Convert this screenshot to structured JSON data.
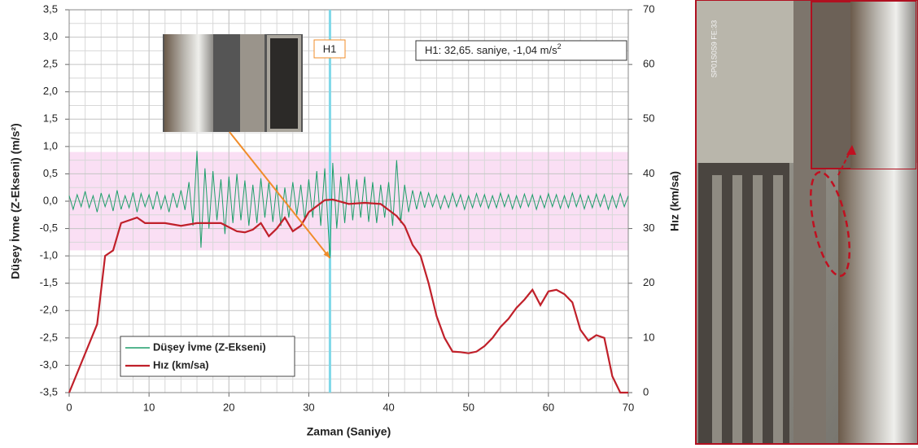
{
  "chart_data": {
    "type": "line",
    "x_label": "Zaman (Saniye)",
    "y_label": "Düşey İvme (Z-Ekseni) (m/s²)",
    "y2_label": "Hız (km/sa)",
    "xlim": [
      0,
      70
    ],
    "xticks": [
      0,
      10,
      20,
      30,
      40,
      50,
      60,
      70
    ],
    "ylim": [
      -3.5,
      3.5
    ],
    "yticks": [
      {
        "value": -3.5,
        "label": "-3,5"
      },
      {
        "value": -3,
        "label": "-3,0"
      },
      {
        "value": -2.5,
        "label": "-2,5"
      },
      {
        "value": -2,
        "label": "-2,0"
      },
      {
        "value": -1.5,
        "label": "-1,5"
      },
      {
        "value": -1,
        "label": "-1,0"
      },
      {
        "value": -0.5,
        "label": "-0,5"
      },
      {
        "value": 0,
        "label": "0,0"
      },
      {
        "value": 0.5,
        "label": "0,5"
      },
      {
        "value": 1,
        "label": "1,0"
      },
      {
        "value": 1.5,
        "label": "1,5"
      },
      {
        "value": 2,
        "label": "2,0"
      },
      {
        "value": 2.5,
        "label": "2,5"
      },
      {
        "value": 3,
        "label": "3,0"
      },
      {
        "value": 3.5,
        "label": "3,5"
      }
    ],
    "y2lim": [
      0,
      70
    ],
    "y2ticks": [
      0,
      10,
      20,
      30,
      40,
      50,
      60,
      70
    ],
    "grid": true,
    "threshold_band": [
      -0.9,
      0.9
    ],
    "marker": {
      "name": "H1",
      "x": 32.65,
      "y": -1.04,
      "color": "#7fd8e8",
      "label": "H1: 32,65. saniye, -1,04 m/s",
      "label_sup": "2"
    },
    "photo_stamp": "SP01S0S9 FE:33",
    "series": [
      {
        "name": "Düşey İvme (Z-Ekseni)",
        "color": "#1e9e6a",
        "x": [
          0,
          0.5,
          1,
          1.5,
          2,
          2.5,
          3,
          3.5,
          4,
          4.5,
          5,
          5.5,
          6,
          6.5,
          7,
          7.5,
          8,
          8.5,
          9,
          9.5,
          10,
          10.5,
          11,
          11.5,
          12,
          12.5,
          13,
          13.5,
          14,
          14.5,
          15,
          15.5,
          16,
          16.5,
          17,
          17.5,
          18,
          18.5,
          19,
          19.5,
          20,
          20.5,
          21,
          21.5,
          22,
          22.5,
          23,
          23.5,
          24,
          24.5,
          25,
          25.5,
          26,
          26.5,
          27,
          27.5,
          28,
          28.5,
          29,
          29.5,
          30,
          30.5,
          31,
          31.5,
          32,
          32.65,
          33,
          33.5,
          34,
          34.5,
          35,
          35.5,
          36,
          36.5,
          37,
          37.5,
          38,
          38.5,
          39,
          39.5,
          40,
          40.5,
          41,
          41.5,
          42,
          42.5,
          43,
          43.5,
          44,
          44.5,
          45,
          45.5,
          46,
          46.5,
          47,
          47.5,
          48,
          48.5,
          49,
          49.5,
          50,
          50.5,
          51,
          51.5,
          52,
          52.5,
          53,
          53.5,
          54,
          54.5,
          55,
          55.5,
          56,
          56.5,
          57,
          57.5,
          58,
          58.5,
          59,
          59.5,
          60,
          60.5,
          61,
          61.5,
          62,
          62.5,
          63,
          63.5,
          64,
          64.5,
          65,
          65.5,
          66,
          66.5,
          67,
          67.5,
          68,
          68.5,
          69,
          69.5,
          70
        ],
        "values": [
          0.1,
          -0.15,
          0.12,
          -0.1,
          0.18,
          -0.12,
          0.1,
          -0.2,
          0.15,
          -0.1,
          0.12,
          -0.18,
          0.2,
          -0.15,
          0.1,
          -0.12,
          0.16,
          -0.2,
          0.14,
          -0.1,
          0.12,
          -0.15,
          0.18,
          -0.14,
          0.1,
          -0.2,
          0.15,
          -0.12,
          0.2,
          -0.16,
          0.35,
          -0.45,
          0.92,
          -0.85,
          0.6,
          -0.5,
          0.55,
          -0.35,
          0.4,
          -0.6,
          0.45,
          -0.4,
          0.5,
          -0.35,
          0.38,
          -0.45,
          0.3,
          -0.4,
          0.42,
          -0.3,
          0.35,
          -0.38,
          0.3,
          -0.45,
          0.25,
          -0.3,
          0.35,
          -0.25,
          0.3,
          -0.35,
          0.4,
          -0.3,
          0.55,
          -0.45,
          0.6,
          -1.04,
          0.7,
          -0.5,
          0.45,
          -0.4,
          0.5,
          -0.35,
          0.4,
          -0.3,
          0.45,
          -0.38,
          0.35,
          -0.4,
          0.3,
          -0.3,
          0.35,
          -0.45,
          0.75,
          -0.4,
          0.3,
          -0.2,
          0.2,
          -0.15,
          0.18,
          -0.12,
          0.15,
          -0.1,
          0.12,
          -0.14,
          0.1,
          -0.12,
          0.15,
          -0.1,
          0.12,
          -0.15,
          0.1,
          -0.12,
          0.14,
          -0.1,
          0.12,
          -0.13,
          0.1,
          -0.12,
          0.15,
          -0.1,
          0.12,
          -0.14,
          0.1,
          -0.12,
          0.13,
          -0.1,
          0.12,
          -0.15,
          0.1,
          -0.12,
          0.14,
          -0.1,
          0.12,
          -0.13,
          0.1,
          -0.12,
          0.15,
          -0.1,
          0.12,
          -0.14,
          0.1,
          -0.12,
          0.13,
          -0.1,
          0.12,
          -0.15,
          0.1,
          -0.12,
          0.14,
          -0.1,
          0.1
        ]
      },
      {
        "name": "Hız (km/sa)",
        "color": "#c0202a",
        "axis": "y2",
        "x": [
          0,
          3.5,
          4.5,
          5.5,
          6.5,
          8.5,
          9.5,
          12,
          14,
          16,
          19,
          21,
          22,
          23,
          24,
          25,
          26,
          27,
          28,
          29,
          30,
          32,
          33,
          35,
          37,
          39,
          41,
          42,
          43,
          44,
          45,
          46,
          47,
          48,
          49,
          50,
          51,
          52,
          53,
          54,
          55,
          56,
          57,
          58,
          59,
          60,
          61,
          62,
          63,
          64,
          65,
          66,
          67,
          68,
          69,
          70
        ],
        "values": [
          0,
          12.5,
          25,
          26,
          31,
          32,
          31,
          31,
          30.5,
          31,
          31,
          29.5,
          29.3,
          29.8,
          31,
          28.6,
          30,
          32,
          29.5,
          30.5,
          33,
          35.2,
          35.3,
          34.5,
          34.7,
          34.5,
          32.3,
          30.5,
          27,
          25,
          20,
          14,
          10,
          7.5,
          7.4,
          7.2,
          7.5,
          8.5,
          10,
          12,
          13.5,
          15.5,
          17,
          18.8,
          16,
          18.5,
          18.8,
          18,
          16.5,
          11.5,
          9.5,
          10.5,
          10,
          3,
          0,
          0
        ]
      }
    ]
  }
}
